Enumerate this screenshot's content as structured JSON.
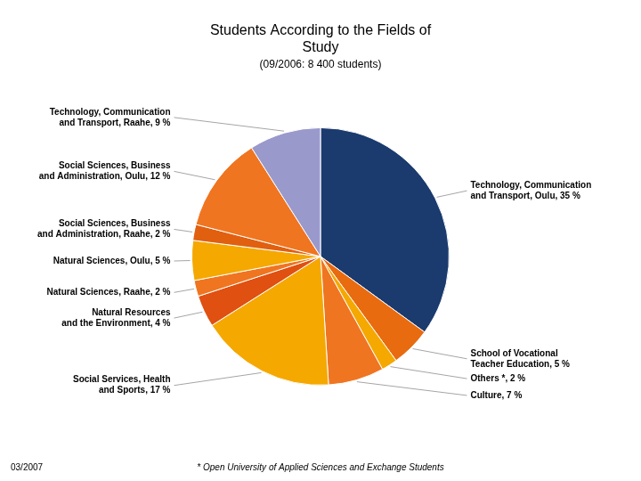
{
  "chart_data": {
    "type": "pie",
    "title": [
      "Students According to the Fields of",
      "Study"
    ],
    "subtitle": "(09/2006: 8 400 students)",
    "annotations": [
      "03/2007",
      "* Open University of Applied Sciences and Exchange Students"
    ],
    "categories": [
      "Technology, Communication\nand Transport, Oulu, 35 %",
      "School of Vocational\nTeacher Education, 5 %",
      "Others *, 2 %",
      "Culture, 7 %",
      "Social Services, Health\nand Sports, 17 %",
      "Natural Resources\nand the Environment, 4 %",
      "Natural Sciences, Raahe, 2 %",
      "Natural Sciences, Oulu, 5 %",
      "Social Sciences, Business\nand Administration, Raahe, 2 %",
      "Social Sciences, Business\nand Administration, Oulu, 12 %",
      "Technology, Communication\nand Transport, Raahe, 9 %"
    ],
    "values": [
      35,
      5,
      2,
      7,
      17,
      4,
      2,
      5,
      2,
      12,
      9
    ],
    "colors": [
      "#1b3a6e",
      "#e96b10",
      "#f5a800",
      "#f07520",
      "#f5a800",
      "#e05010",
      "#f07520",
      "#f5a800",
      "#e06010",
      "#f07520",
      "#9999cc"
    ]
  }
}
